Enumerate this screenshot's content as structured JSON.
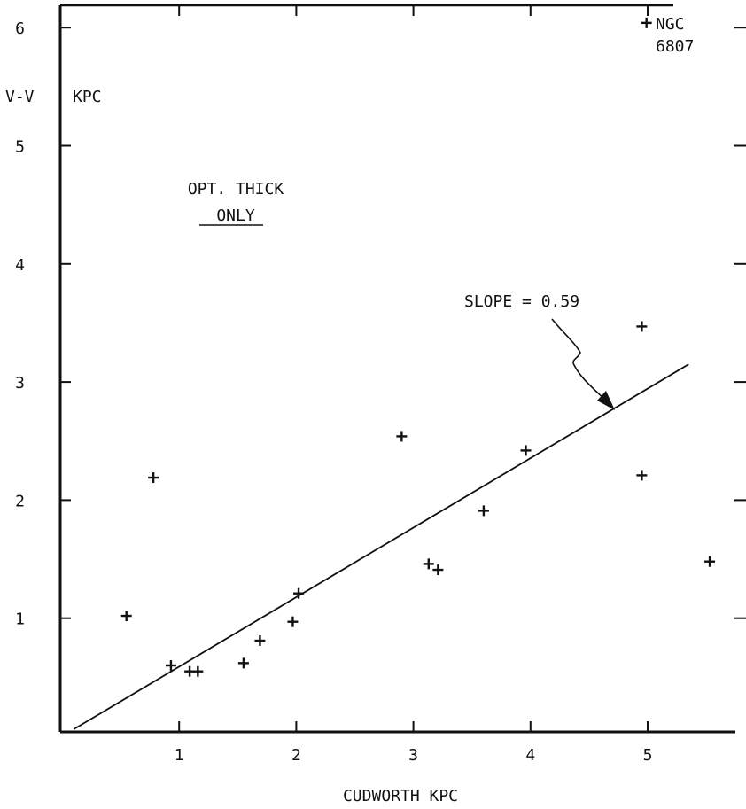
{
  "chart_data": {
    "type": "scatter",
    "title": "",
    "xlabel": "CUDWORTH KPC",
    "ylabel": "V-V",
    "ylabel_unit": "KPC",
    "xlim": [
      0,
      5.85
    ],
    "ylim": [
      -0.2,
      6.3
    ],
    "x_ticks": [
      1,
      2,
      3,
      4,
      5
    ],
    "y_ticks": [
      1,
      2,
      3,
      4,
      5,
      6
    ],
    "grid": false,
    "legend": "none",
    "series": [
      {
        "points": [
          {
            "x": 0.55,
            "y": 1.02
          },
          {
            "x": 0.78,
            "y": 2.19
          },
          {
            "x": 0.93,
            "y": 0.6
          },
          {
            "x": 1.09,
            "y": 0.55
          },
          {
            "x": 1.16,
            "y": 0.55
          },
          {
            "x": 1.55,
            "y": 0.62
          },
          {
            "x": 1.69,
            "y": 0.81
          },
          {
            "x": 1.97,
            "y": 0.97
          },
          {
            "x": 2.02,
            "y": 1.21
          },
          {
            "x": 2.9,
            "y": 2.54
          },
          {
            "x": 3.13,
            "y": 1.46
          },
          {
            "x": 3.21,
            "y": 1.41
          },
          {
            "x": 3.6,
            "y": 1.91
          },
          {
            "x": 3.96,
            "y": 2.42
          },
          {
            "x": 4.95,
            "y": 3.47
          },
          {
            "x": 4.95,
            "y": 2.21
          },
          {
            "x": 4.99,
            "y": 6.04
          },
          {
            "x": 5.53,
            "y": 1.48
          }
        ]
      }
    ],
    "fit_line": {
      "x": [
        0.1,
        5.35
      ],
      "y": [
        0.06,
        3.15
      ],
      "slope": 0.59
    },
    "annotations": {
      "slope_label": "SLOPE = 0.59",
      "opt_thick": "OPT. THICK",
      "only": "ONLY",
      "ngc_line1": "NGC",
      "ngc_line2": "6807"
    }
  }
}
